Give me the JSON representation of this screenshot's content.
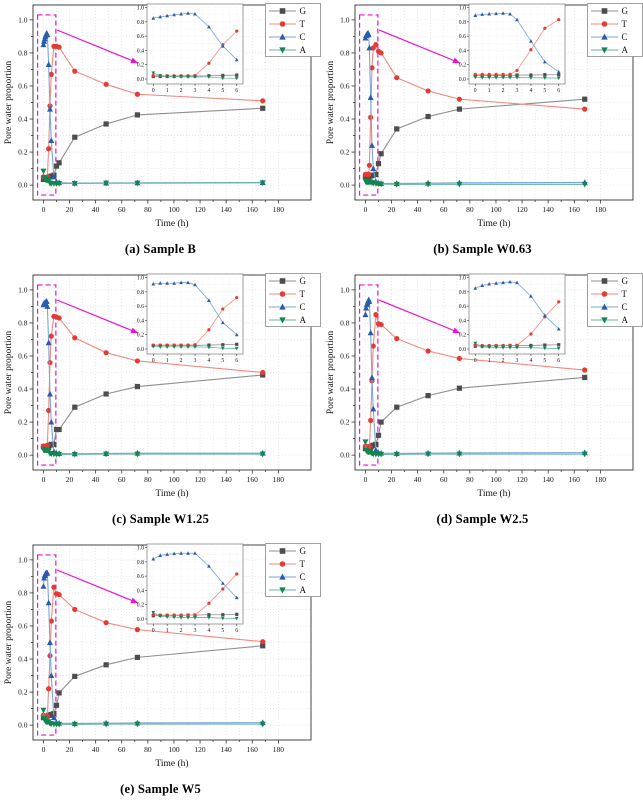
{
  "figure": {
    "ylabel": "Pore water proportion",
    "xlabel": "Time (h)",
    "colors": {
      "magenta_highlight": "#ee11d2",
      "grid": "#d6d6d6",
      "axis": "#333333"
    },
    "legend": [
      "G",
      "T",
      "C",
      "A"
    ],
    "series_styles": {
      "G": {
        "marker": "square",
        "color": "#4d4d4d",
        "line": "#8f8f8f"
      },
      "T": {
        "marker": "circle",
        "color": "#e23c34",
        "line": "#f08a80"
      },
      "C": {
        "marker": "triangle-up",
        "color": "#2a5caa",
        "line": "#79a5d8"
      },
      "A": {
        "marker": "triangle-down",
        "color": "#12864f",
        "line": "#66b3a4"
      }
    }
  },
  "chart_data": [
    {
      "type": "line",
      "caption": "(a) Sample B",
      "xlabel": "Time (h)",
      "ylabel": "Pore water proportion",
      "xlim": [
        0,
        180
      ],
      "ylim": [
        0.0,
        1.0
      ],
      "xtick_step": 20,
      "ytick_step": 0.2,
      "grid": "dotted",
      "legend_position": "top-right",
      "highlight_box": {
        "x": [
          -4.5,
          9.5
        ],
        "y": [
          -0.06,
          1.03
        ]
      },
      "inset": {
        "xlim": [
          0,
          6
        ],
        "ylim": [
          0.0,
          1.0
        ],
        "xtick_step": 1,
        "ytick_step": 0.2,
        "shows": "same series, first 6 h"
      },
      "x": [
        0,
        0.5,
        1,
        1.5,
        2,
        2.5,
        3,
        4,
        5,
        6,
        8,
        10,
        12,
        24,
        48,
        72,
        168
      ],
      "series": [
        {
          "name": "G",
          "values": [
            0.035,
            0.035,
            0.035,
            0.035,
            0.04,
            0.04,
            0.04,
            0.045,
            0.05,
            0.055,
            0.06,
            0.115,
            0.135,
            0.29,
            0.37,
            0.425,
            0.465
          ]
        },
        {
          "name": "T",
          "values": [
            0.05,
            0.045,
            0.045,
            0.045,
            0.045,
            0.045,
            0.05,
            0.22,
            0.48,
            0.67,
            0.84,
            0.84,
            0.835,
            0.69,
            0.61,
            0.55,
            0.51
          ]
        },
        {
          "name": "C",
          "values": [
            0.85,
            0.87,
            0.885,
            0.9,
            0.91,
            0.92,
            0.91,
            0.73,
            0.46,
            0.27,
            0.05,
            0.02,
            0.015,
            0.012,
            0.013,
            0.014,
            0.016
          ]
        },
        {
          "name": "A",
          "values": [
            0.085,
            0.045,
            0.04,
            0.035,
            0.032,
            0.03,
            0.03,
            0.028,
            0.012,
            0.01,
            0.01,
            0.01,
            0.01,
            0.01,
            0.012,
            0.012,
            0.014
          ]
        }
      ]
    },
    {
      "type": "line",
      "caption": "(b) Sample W0.63",
      "xlabel": "Time (h)",
      "ylabel": "Pore water proportion",
      "xlim": [
        0,
        180
      ],
      "ylim": [
        0.0,
        1.0
      ],
      "xtick_step": 20,
      "ytick_step": 0.2,
      "grid": "dotted",
      "legend_position": "top-right",
      "highlight_box": {
        "x": [
          -4.5,
          9.5
        ],
        "y": [
          -0.06,
          1.03
        ]
      },
      "inset": {
        "xlim": [
          0,
          6
        ],
        "ylim": [
          0.0,
          1.0
        ],
        "xtick_step": 1,
        "ytick_step": 0.2,
        "shows": "same series, first 6 h"
      },
      "x": [
        0,
        0.5,
        1,
        1.5,
        2,
        2.5,
        3,
        4,
        5,
        6,
        8,
        10,
        12,
        24,
        48,
        72,
        168
      ],
      "series": [
        {
          "name": "G",
          "values": [
            0.05,
            0.05,
            0.05,
            0.05,
            0.05,
            0.05,
            0.055,
            0.055,
            0.06,
            0.06,
            0.065,
            0.13,
            0.19,
            0.34,
            0.415,
            0.46,
            0.52
          ]
        },
        {
          "name": "T",
          "values": [
            0.065,
            0.065,
            0.065,
            0.065,
            0.065,
            0.065,
            0.12,
            0.41,
            0.71,
            0.83,
            0.85,
            0.81,
            0.8,
            0.65,
            0.57,
            0.52,
            0.46
          ]
        },
        {
          "name": "C",
          "values": [
            0.89,
            0.905,
            0.91,
            0.915,
            0.92,
            0.91,
            0.83,
            0.53,
            0.24,
            0.1,
            0.02,
            0.012,
            0.01,
            0.01,
            0.012,
            0.014,
            0.016
          ]
        },
        {
          "name": "A",
          "values": [
            0.025,
            0.02,
            0.02,
            0.02,
            0.02,
            0.02,
            0.02,
            0.018,
            0.015,
            0.012,
            0.01,
            0.008,
            0.006,
            0.005,
            0.005,
            0.005,
            0.005
          ]
        }
      ]
    },
    {
      "type": "line",
      "caption": "(c) Sample W1.25",
      "xlabel": "Time (h)",
      "ylabel": "Pore water proportion",
      "xlim": [
        0,
        180
      ],
      "ylim": [
        0.0,
        1.0
      ],
      "xtick_step": 20,
      "ytick_step": 0.2,
      "grid": "dotted",
      "legend_position": "top-right",
      "highlight_box": {
        "x": [
          -4.5,
          9.5
        ],
        "y": [
          -0.06,
          1.03
        ]
      },
      "inset": {
        "xlim": [
          0,
          6
        ],
        "ylim": [
          0.0,
          1.0
        ],
        "xtick_step": 1,
        "ytick_step": 0.2,
        "shows": "same series, first 6 h"
      },
      "x": [
        0,
        0.5,
        1,
        1.5,
        2,
        2.5,
        3,
        4,
        5,
        6,
        8,
        10,
        12,
        24,
        48,
        72,
        168
      ],
      "series": [
        {
          "name": "G",
          "values": [
            0.05,
            0.05,
            0.05,
            0.05,
            0.05,
            0.05,
            0.05,
            0.055,
            0.06,
            0.065,
            0.065,
            0.155,
            0.155,
            0.29,
            0.37,
            0.415,
            0.485
          ]
        },
        {
          "name": "T",
          "values": [
            0.055,
            0.055,
            0.055,
            0.055,
            0.055,
            0.055,
            0.06,
            0.27,
            0.56,
            0.72,
            0.84,
            0.835,
            0.83,
            0.71,
            0.62,
            0.57,
            0.5
          ]
        },
        {
          "name": "C",
          "values": [
            0.91,
            0.92,
            0.92,
            0.92,
            0.93,
            0.93,
            0.9,
            0.68,
            0.37,
            0.2,
            0.02,
            0.012,
            0.01,
            0.008,
            0.01,
            0.012,
            0.012
          ]
        },
        {
          "name": "A",
          "values": [
            0.035,
            0.03,
            0.03,
            0.03,
            0.03,
            0.03,
            0.03,
            0.025,
            0.01,
            0.008,
            0.006,
            0.005,
            0.005,
            0.005,
            0.006,
            0.006,
            0.006
          ]
        }
      ]
    },
    {
      "type": "line",
      "caption": "(d) Sample W2.5",
      "xlabel": "Time (h)",
      "ylabel": "Pore water proportion",
      "xlim": [
        0,
        180
      ],
      "ylim": [
        0.0,
        1.0
      ],
      "xtick_step": 20,
      "ytick_step": 0.2,
      "grid": "dotted",
      "legend_position": "top-right",
      "highlight_box": {
        "x": [
          -4.5,
          9.5
        ],
        "y": [
          -0.06,
          1.03
        ]
      },
      "inset": {
        "xlim": [
          0,
          6
        ],
        "ylim": [
          0.0,
          1.0
        ],
        "xtick_step": 1,
        "ytick_step": 0.2,
        "shows": "same series, first 6 h"
      },
      "x": [
        0,
        0.5,
        1,
        1.5,
        2,
        2.5,
        3,
        4,
        5,
        6,
        8,
        10,
        12,
        24,
        48,
        72,
        168
      ],
      "series": [
        {
          "name": "G",
          "values": [
            0.04,
            0.04,
            0.04,
            0.045,
            0.045,
            0.05,
            0.05,
            0.05,
            0.055,
            0.06,
            0.065,
            0.12,
            0.2,
            0.29,
            0.36,
            0.405,
            0.47
          ]
        },
        {
          "name": "T",
          "values": [
            0.055,
            0.05,
            0.05,
            0.05,
            0.05,
            0.05,
            0.05,
            0.21,
            0.45,
            0.66,
            0.85,
            0.795,
            0.79,
            0.705,
            0.63,
            0.585,
            0.515
          ]
        },
        {
          "name": "C",
          "values": [
            0.85,
            0.89,
            0.91,
            0.92,
            0.93,
            0.94,
            0.93,
            0.74,
            0.47,
            0.28,
            0.03,
            0.015,
            0.012,
            0.01,
            0.012,
            0.013,
            0.015
          ]
        },
        {
          "name": "A",
          "values": [
            0.08,
            0.03,
            0.025,
            0.022,
            0.02,
            0.02,
            0.02,
            0.02,
            0.01,
            0.008,
            0.006,
            0.005,
            0.005,
            0.005,
            0.006,
            0.006,
            0.006
          ]
        }
      ]
    },
    {
      "type": "line",
      "caption": "(e) Sample W5",
      "xlabel": "Time (h)",
      "ylabel": "Pore water proportion",
      "xlim": [
        0,
        180
      ],
      "ylim": [
        0.0,
        1.0
      ],
      "xtick_step": 20,
      "ytick_step": 0.2,
      "grid": "dotted",
      "legend_position": "top-right",
      "highlight_box": {
        "x": [
          -4.5,
          9.5
        ],
        "y": [
          -0.06,
          1.03
        ]
      },
      "inset": {
        "xlim": [
          0,
          6
        ],
        "ylim": [
          0.0,
          1.0
        ],
        "xtick_step": 1,
        "ytick_step": 0.2,
        "shows": "same series, first 6 h"
      },
      "x": [
        0,
        0.5,
        1,
        1.5,
        2,
        2.5,
        3,
        4,
        5,
        6,
        8,
        10,
        12,
        24,
        48,
        72,
        168
      ],
      "series": [
        {
          "name": "G",
          "values": [
            0.045,
            0.05,
            0.05,
            0.05,
            0.05,
            0.055,
            0.055,
            0.06,
            0.06,
            0.065,
            0.07,
            0.12,
            0.195,
            0.295,
            0.365,
            0.41,
            0.48
          ]
        },
        {
          "name": "T",
          "values": [
            0.06,
            0.055,
            0.055,
            0.055,
            0.055,
            0.055,
            0.055,
            0.22,
            0.42,
            0.63,
            0.835,
            0.795,
            0.79,
            0.7,
            0.62,
            0.578,
            0.505
          ]
        },
        {
          "name": "C",
          "values": [
            0.84,
            0.89,
            0.905,
            0.915,
            0.92,
            0.92,
            0.92,
            0.74,
            0.5,
            0.3,
            0.045,
            0.015,
            0.012,
            0.01,
            0.012,
            0.013,
            0.015
          ]
        },
        {
          "name": "A",
          "values": [
            0.09,
            0.04,
            0.03,
            0.025,
            0.022,
            0.02,
            0.02,
            0.02,
            0.01,
            0.008,
            0.006,
            0.005,
            0.005,
            0.005,
            0.006,
            0.006,
            0.006
          ]
        }
      ]
    }
  ]
}
